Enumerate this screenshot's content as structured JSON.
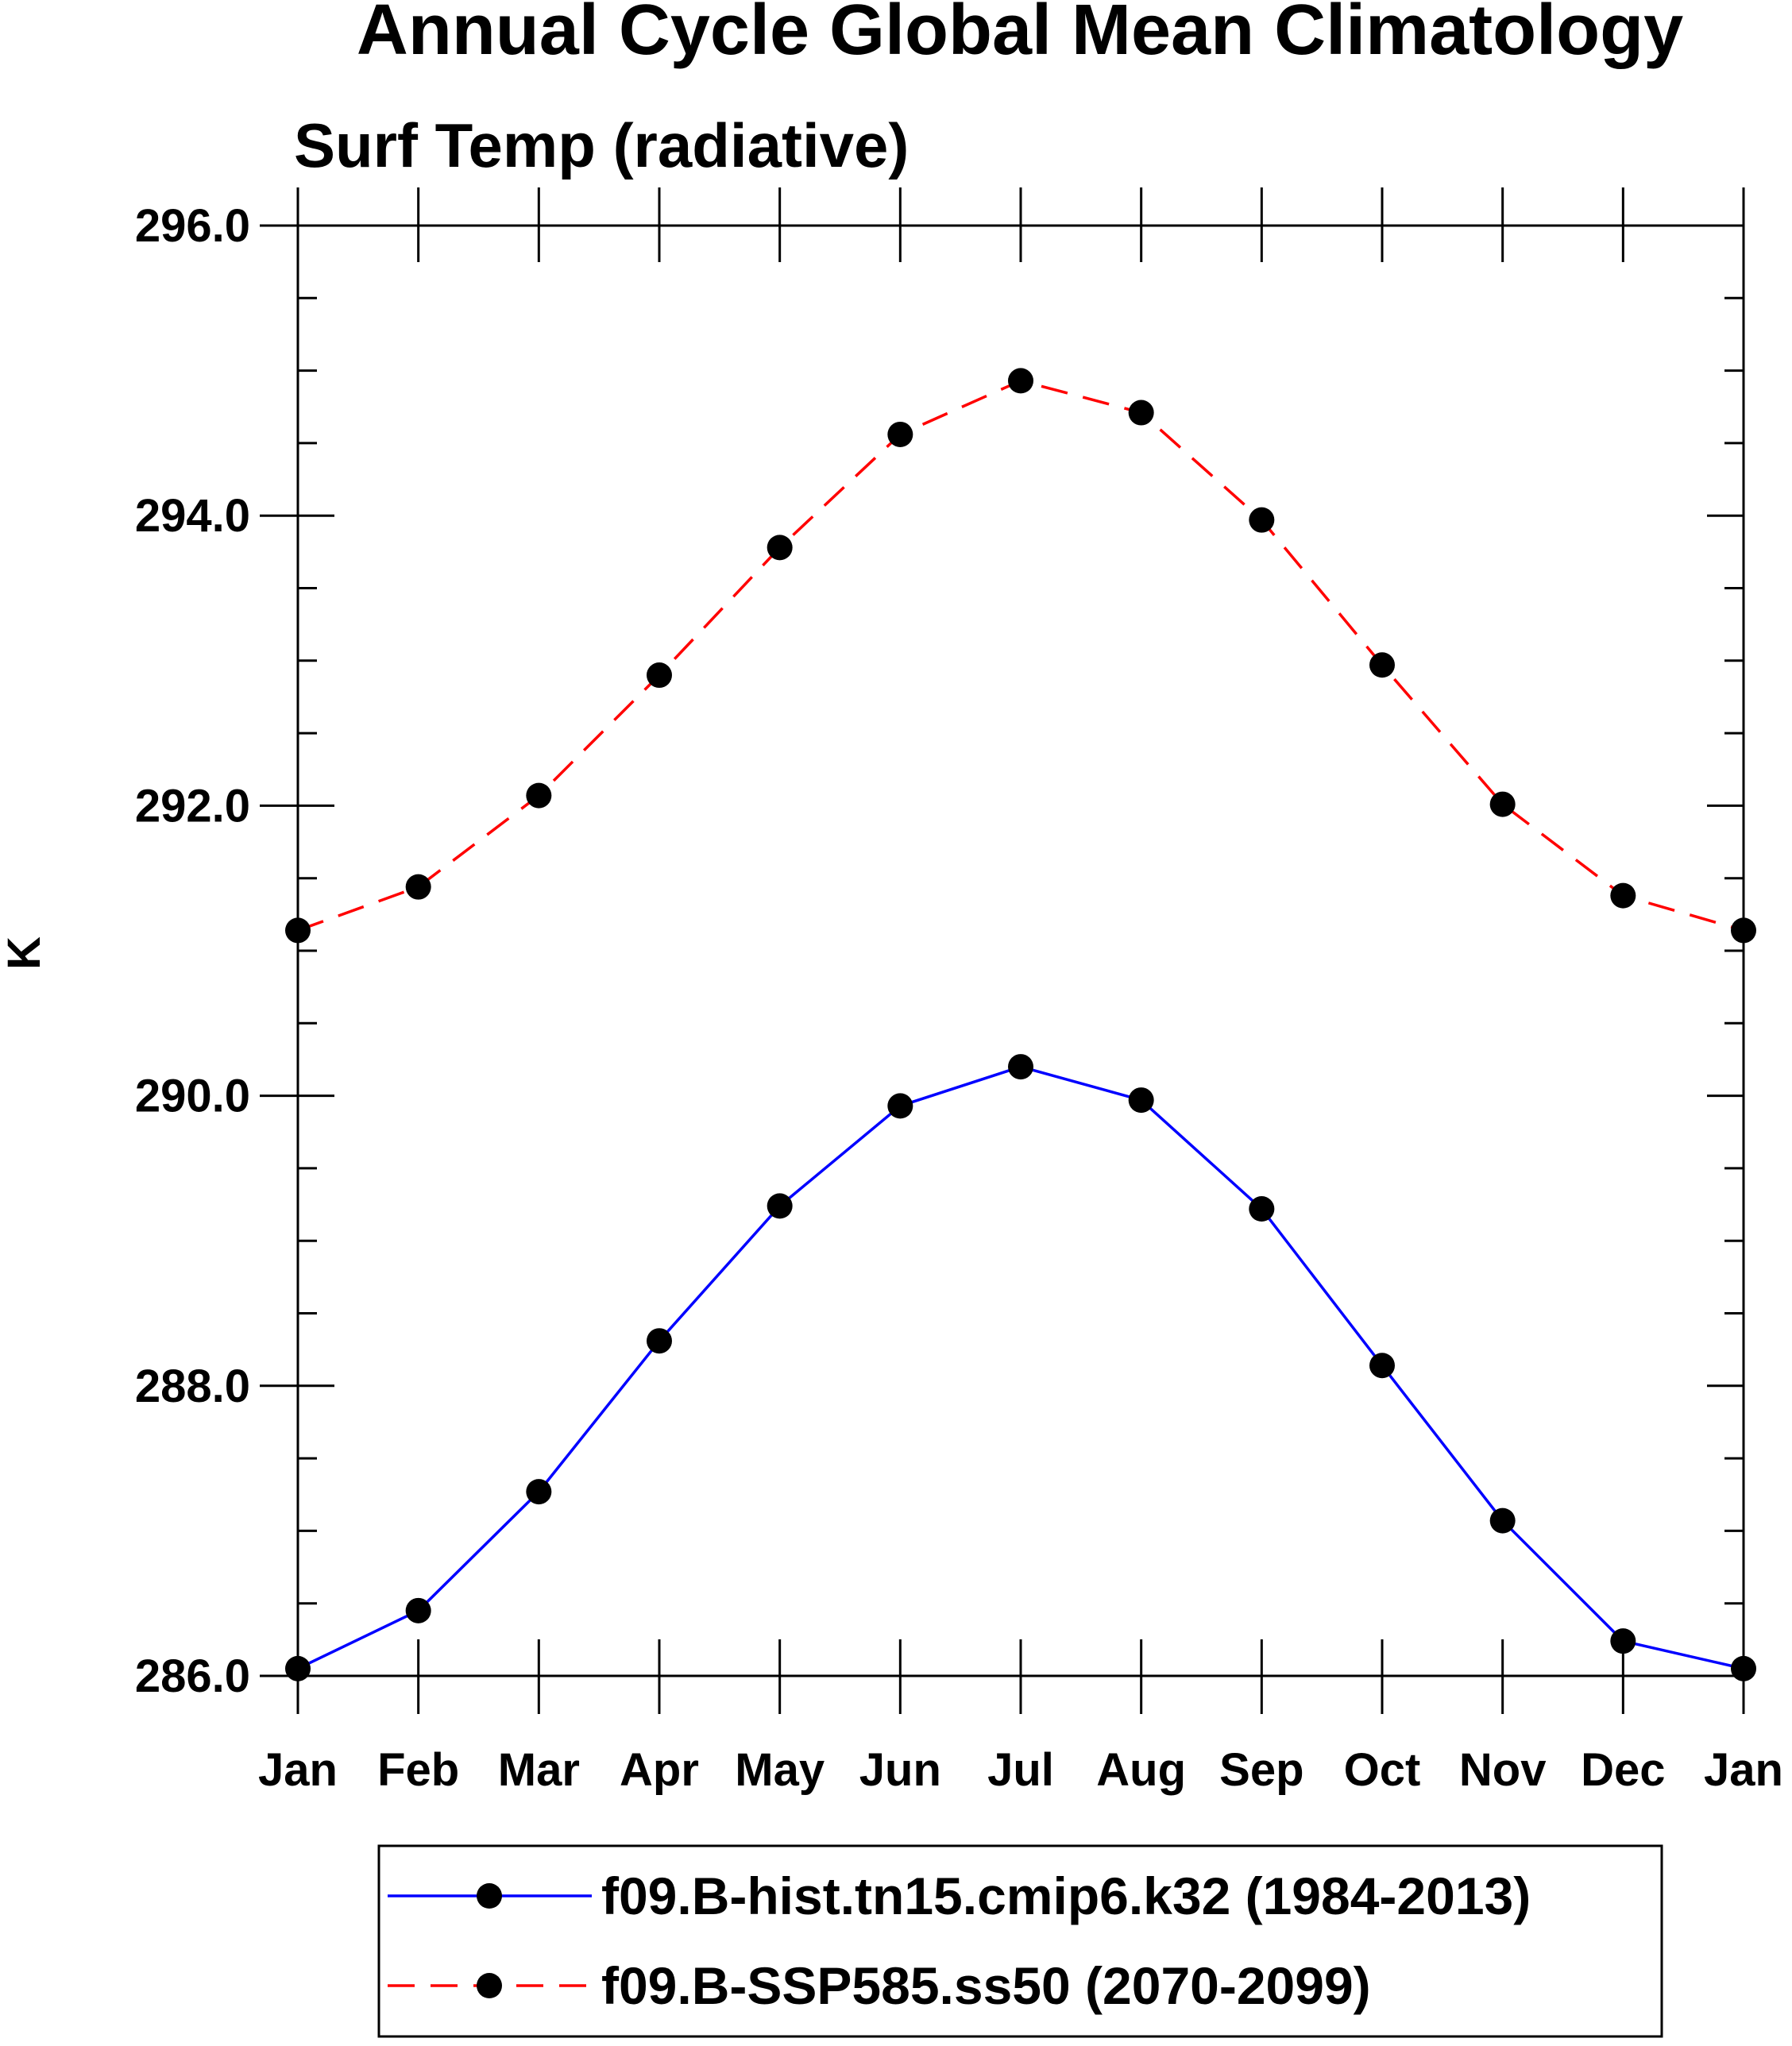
{
  "chart_data": {
    "type": "line",
    "title": "Annual Cycle Global Mean Climatology",
    "subtitle": "Surf Temp (radiative)",
    "xlabel": "",
    "ylabel": "K",
    "categories": [
      "Jan",
      "Feb",
      "Mar",
      "Apr",
      "May",
      "Jun",
      "Jul",
      "Aug",
      "Sep",
      "Oct",
      "Nov",
      "Dec",
      "Jan"
    ],
    "ylim": [
      286.0,
      296.0
    ],
    "y_ticks": [
      "286.0",
      "288.0",
      "290.0",
      "292.0",
      "294.0",
      "296.0"
    ],
    "grid": false,
    "legend_position": "bottom",
    "series": [
      {
        "name": "f09.B-hist.tn15.cmip6.k32 (1984-2013)",
        "color": "#0000ff",
        "dash": "solid",
        "marker": "filled-circle",
        "values": [
          286.05,
          286.45,
          287.27,
          288.31,
          289.24,
          289.93,
          290.2,
          289.97,
          289.22,
          288.14,
          287.07,
          286.24,
          286.05
        ]
      },
      {
        "name": "f09.B-SSP585.ss50 (2070-2099)",
        "color": "#ff0000",
        "dash": "dashed",
        "marker": "filled-circle",
        "values": [
          291.14,
          291.44,
          292.07,
          292.9,
          293.78,
          294.56,
          294.93,
          294.71,
          293.97,
          292.97,
          292.01,
          291.38,
          291.14
        ]
      }
    ]
  }
}
